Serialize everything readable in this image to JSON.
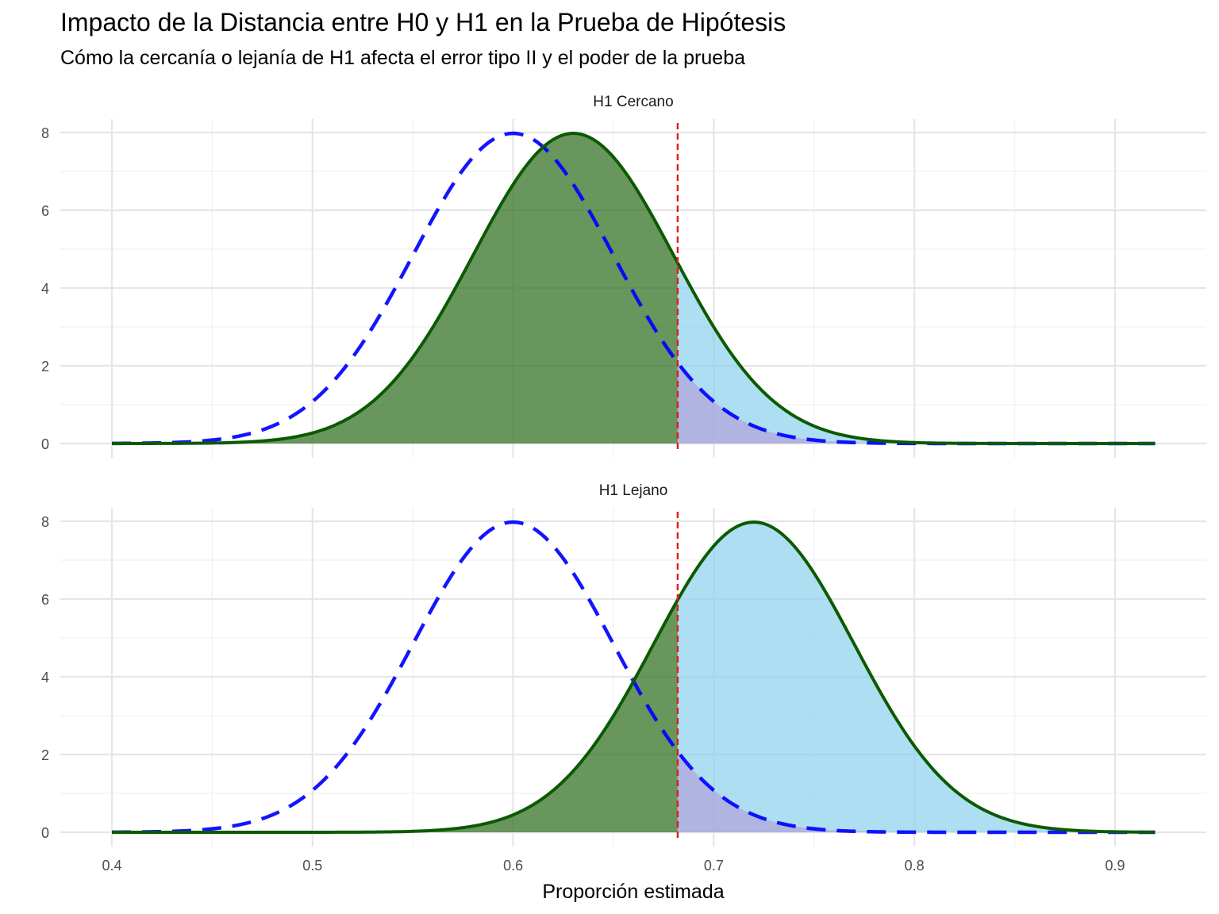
{
  "chart_data": {
    "type": "area",
    "title": "Impacto de la Distancia entre H0 y H1 en la Prueba de Hipótesis",
    "subtitle": "Cómo la cercanía o lejanía de H1 afecta el error tipo II y el poder de la prueba",
    "xlabel": "Proporción estimada",
    "ylabel": "",
    "xlim": [
      0.4,
      0.92
    ],
    "ylim": [
      0,
      8
    ],
    "x_ticks": [
      "0.4",
      "0.5",
      "0.6",
      "0.7",
      "0.8",
      "0.9"
    ],
    "y_ticks": [
      "0",
      "2",
      "4",
      "6",
      "8"
    ],
    "critical_value": 0.682,
    "sd": 0.05,
    "h0_mean": 0.6,
    "grid": true,
    "legend": "none",
    "colors": {
      "h0_line": "#0000ff",
      "h1_line": "#0b5a00",
      "beta_fill": "#2e6e1f",
      "power_fill": "#87ceeb",
      "alpha_fill": "#b19cd9",
      "critical_line": "#e41a1c"
    },
    "panels": [
      {
        "label": "H1 Cercano",
        "h1_mean": 0.63
      },
      {
        "label": "H1 Lejano",
        "h1_mean": 0.72
      }
    ]
  }
}
